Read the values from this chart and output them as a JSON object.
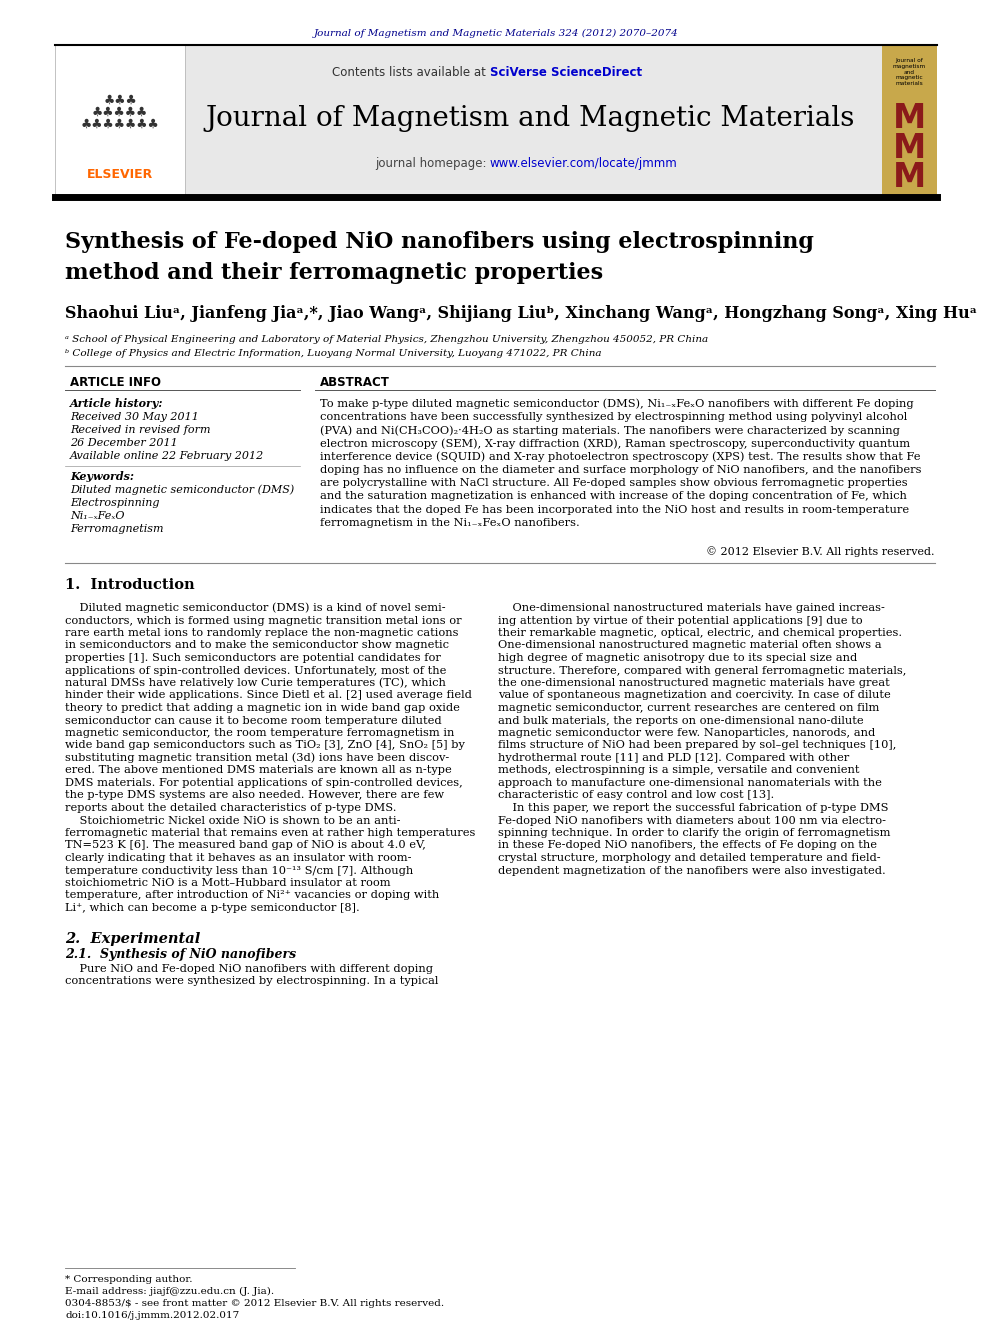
{
  "page_width": 9.92,
  "page_height": 13.23,
  "bg_color": "#ffffff",
  "top_journal_ref": "Journal of Magnetism and Magnetic Materials 324 (2012) 2070–2074",
  "top_journal_ref_color": "#00008B",
  "header_bg": "#e8e8e8",
  "header_contents": "Contents lists available at",
  "header_sciverse": "SciVerse ScienceDirect",
  "header_journal_name": "Journal of Magnetism and Magnetic Materials",
  "header_homepage_label": "journal homepage:",
  "header_homepage_url": "www.elsevier.com/locate/jmmm",
  "title_line1": "Synthesis of Fe-doped NiO nanofibers using electrospinning",
  "title_line2": "method and their ferromagnetic properties",
  "authors_line": "Shaohui Liuᵃ, Jianfeng Jiaᵃ,*, Jiao Wangᵃ, Shijiang Liuᵇ, Xinchang Wangᵃ, Hongzhang Songᵃ, Xing Huᵃ",
  "affil_a": "ᵃ School of Physical Engineering and Laboratory of Material Physics, Zhengzhou University, Zhengzhou 450052, PR China",
  "affil_b": "ᵇ College of Physics and Electric Information, Luoyang Normal University, Luoyang 471022, PR China",
  "article_info_title": "ARTICLE INFO",
  "abstract_title": "ABSTRACT",
  "article_history_label": "Article history:",
  "received": "Received 30 May 2011",
  "received_revised_1": "Received in revised form",
  "received_revised_2": "26 December 2011",
  "available": "Available online 22 February 2012",
  "keywords_label": "Keywords:",
  "keywords": [
    "Diluted magnetic semiconductor (DMS)",
    "Electrospinning",
    "Ni₁₋ₓFeₓO",
    "Ferromagnetism"
  ],
  "abstract_lines": [
    "To make p-type diluted magnetic semiconductor (DMS), Ni₁₋ₓFeₓO nanofibers with different Fe doping",
    "concentrations have been successfully synthesized by electrospinning method using polyvinyl alcohol",
    "(PVA) and Ni(CH₃COO)₂·4H₂O as starting materials. The nanofibers were characterized by scanning",
    "electron microscopy (SEM), X-ray diffraction (XRD), Raman spectroscopy, superconductivity quantum",
    "interference device (SQUID) and X-ray photoelectron spectroscopy (XPS) test. The results show that Fe",
    "doping has no influence on the diameter and surface morphology of NiO nanofibers, and the nanofibers",
    "are polycrystalline with NaCl structure. All Fe-doped samples show obvious ferromagnetic properties",
    "and the saturation magnetization is enhanced with increase of the doping concentration of Fe, which",
    "indicates that the doped Fe has been incorporated into the NiO host and results in room-temperature",
    "ferromagnetism in the Ni₁₋ₓFeₓO nanofibers."
  ],
  "copyright": "© 2012 Elsevier B.V. All rights reserved.",
  "section1_title": "1.  Introduction",
  "intro_col1_lines": [
    "    Diluted magnetic semiconductor (DMS) is a kind of novel semi-",
    "conductors, which is formed using magnetic transition metal ions or",
    "rare earth metal ions to randomly replace the non-magnetic cations",
    "in semiconductors and to make the semiconductor show magnetic",
    "properties [1]. Such semiconductors are potential candidates for",
    "applications of spin-controlled devices. Unfortunately, most of the",
    "natural DMSs have relatively low Curie temperatures (TC), which",
    "hinder their wide applications. Since Dietl et al. [2] used average field",
    "theory to predict that adding a magnetic ion in wide band gap oxide",
    "semiconductor can cause it to become room temperature diluted",
    "magnetic semiconductor, the room temperature ferromagnetism in",
    "wide band gap semiconductors such as TiO₂ [3], ZnO [4], SnO₂ [5] by",
    "substituting magnetic transition metal (3d) ions have been discov-",
    "ered. The above mentioned DMS materials are known all as n-type",
    "DMS materials. For potential applications of spin-controlled devices,",
    "the p-type DMS systems are also needed. However, there are few",
    "reports about the detailed characteristics of p-type DMS.",
    "    Stoichiometric Nickel oxide NiO is shown to be an anti-",
    "ferromagnetic material that remains even at rather high temperatures",
    "TN=523 K [6]. The measured band gap of NiO is about 4.0 eV,",
    "clearly indicating that it behaves as an insulator with room-",
    "temperature conductivity less than 10⁻¹³ S/cm [7]. Although",
    "stoichiometric NiO is a Mott–Hubbard insulator at room",
    "temperature, after introduction of Ni²⁺ vacancies or doping with",
    "Li⁺, which can become a p-type semiconductor [8]."
  ],
  "intro_col2_lines": [
    "    One-dimensional nanostructured materials have gained increas-",
    "ing attention by virtue of their potential applications [9] due to",
    "their remarkable magnetic, optical, electric, and chemical properties.",
    "One-dimensional nanostructured magnetic material often shows a",
    "high degree of magnetic anisotropy due to its special size and",
    "structure. Therefore, compared with general ferromagnetic materials,",
    "the one-dimensional nanostructured magnetic materials have great",
    "value of spontaneous magnetization and coercivity. In case of dilute",
    "magnetic semiconductor, current researches are centered on film",
    "and bulk materials, the reports on one-dimensional nano-dilute",
    "magnetic semiconductor were few. Nanoparticles, nanorods, and",
    "films structure of NiO had been prepared by sol–gel techniques [10],",
    "hydrothermal route [11] and PLD [12]. Compared with other",
    "methods, electrospinning is a simple, versatile and convenient",
    "approach to manufacture one-dimensional nanomaterials with the",
    "characteristic of easy control and low cost [13].",
    "    In this paper, we report the successful fabrication of p-type DMS",
    "Fe-doped NiO nanofibers with diameters about 100 nm via electro-",
    "spinning technique. In order to clarify the origin of ferromagnetism",
    "in these Fe-doped NiO nanofibers, the effects of Fe doping on the",
    "crystal structure, morphology and detailed temperature and field-",
    "dependent magnetization of the nanofibers were also investigated."
  ],
  "section2_title": "2.  Experimental",
  "section21_title": "2.1.  Synthesis of NiO nanofibers",
  "section21_lines": [
    "    Pure NiO and Fe-doped NiO nanofibers with different doping",
    "concentrations were synthesized by electrospinning. In a typical"
  ],
  "footer_note": "* Corresponding author.",
  "footer_email_label": "E-mail address:",
  "footer_email": "jiajf@zzu.edu.cn (J. Jia).",
  "footer_issn": "0304-8853/$ - see front matter © 2012 Elsevier B.V. All rights reserved.",
  "footer_doi": "doi:10.1016/j.jmmm.2012.02.017",
  "elsevier_color": "#FF6600",
  "link_color": "#0000CD",
  "mmm_gold": "#C8A84B",
  "mmm_red": "#8B1A1A"
}
